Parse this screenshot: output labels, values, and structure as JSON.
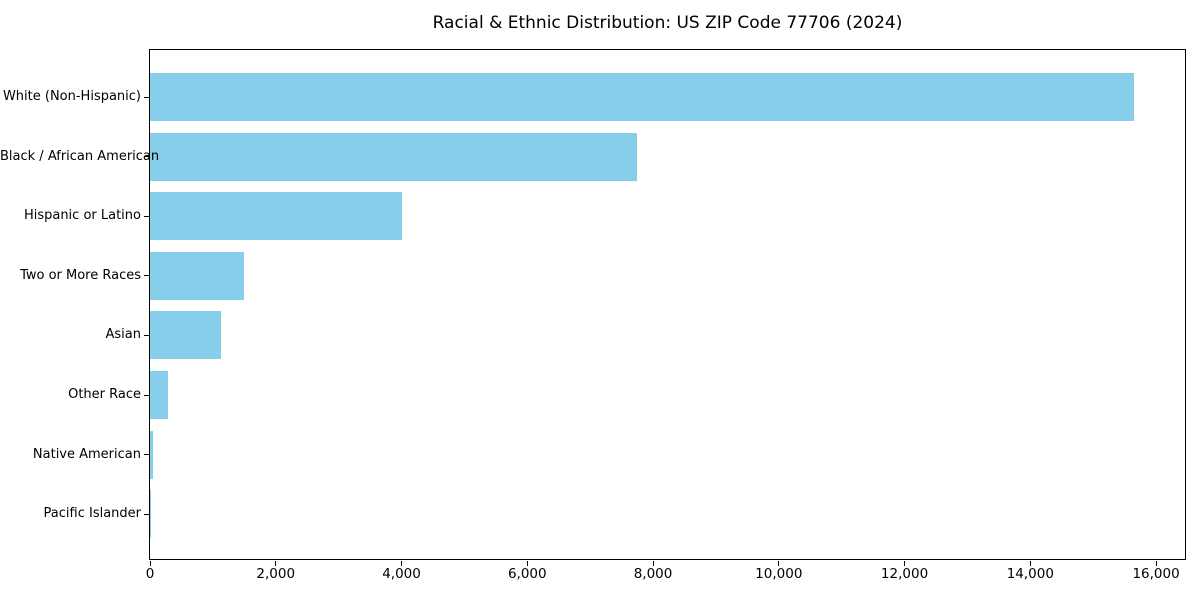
{
  "chart_data": {
    "type": "bar",
    "orientation": "horizontal",
    "title": "Racial & Ethnic Distribution: US ZIP Code 77706 (2024)",
    "categories": [
      "White (Non-Hispanic)",
      "Black / African American",
      "Hispanic or Latino",
      "Two or More Races",
      "Asian",
      "Other Race",
      "Native American",
      "Pacific Islander"
    ],
    "values": [
      15650,
      7750,
      4000,
      1500,
      1130,
      290,
      50,
      10
    ],
    "xlabel": "",
    "ylabel": "",
    "xlim": [
      0,
      16460
    ],
    "xticks": [
      0,
      2000,
      4000,
      6000,
      8000,
      10000,
      12000,
      14000,
      16000
    ],
    "xtick_labels": [
      "0",
      "2,000",
      "4,000",
      "6,000",
      "8,000",
      "10,000",
      "12,000",
      "14,000",
      "16,000"
    ],
    "grid": false,
    "legend": null,
    "bar_color": "#87CEEB",
    "axis_color": "#000000",
    "background_color": "#ffffff"
  }
}
